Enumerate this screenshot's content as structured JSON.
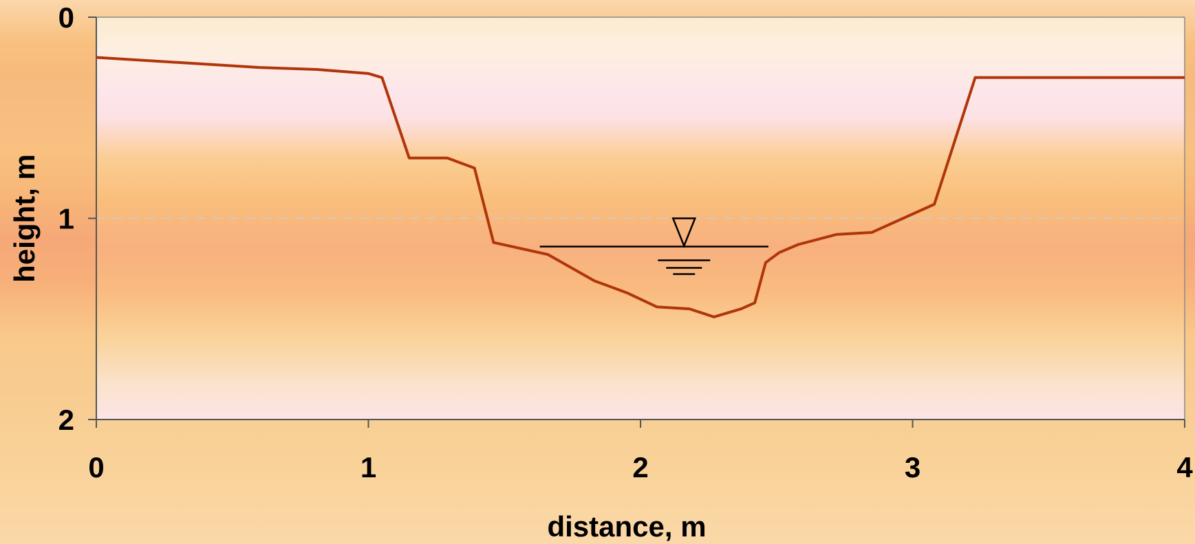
{
  "chart_data": {
    "type": "line",
    "title": "",
    "xlabel": "distance, m",
    "ylabel": "height, m",
    "xlim": [
      0,
      4
    ],
    "ylim": [
      0,
      2
    ],
    "y_inverted": true,
    "x_ticks": [
      "0",
      "1",
      "2",
      "3",
      "4"
    ],
    "y_ticks": [
      "0",
      "1",
      "2"
    ],
    "grid": "horizontal dashed at y=1",
    "colors": {
      "profile_line": "#b0360a",
      "water_symbol": "#000000",
      "plot_area_top": "#fdf0dc",
      "plot_area_mid": "#fbb985",
      "plot_area_band": "#fbe6ec"
    },
    "series": [
      {
        "x": [
          0,
          0.6,
          0.81,
          1.0,
          1.05,
          1.15,
          1.29,
          1.39,
          1.46,
          1.66,
          1.83,
          1.95,
          2.06,
          2.18,
          2.27,
          2.37,
          2.42,
          2.46,
          2.51,
          2.58,
          2.72,
          2.85,
          3.08,
          3.23,
          4.0
        ],
        "y": [
          0.2,
          0.25,
          0.26,
          0.28,
          0.3,
          0.7,
          0.7,
          0.75,
          1.12,
          1.18,
          1.31,
          1.37,
          1.44,
          1.45,
          1.49,
          1.45,
          1.42,
          1.22,
          1.17,
          1.13,
          1.08,
          1.07,
          0.93,
          0.3,
          0.3
        ]
      }
    ],
    "annotations": [
      {
        "type": "water-level-symbol",
        "x_start": 1.63,
        "x_end": 2.47,
        "y": 1.14
      }
    ]
  }
}
